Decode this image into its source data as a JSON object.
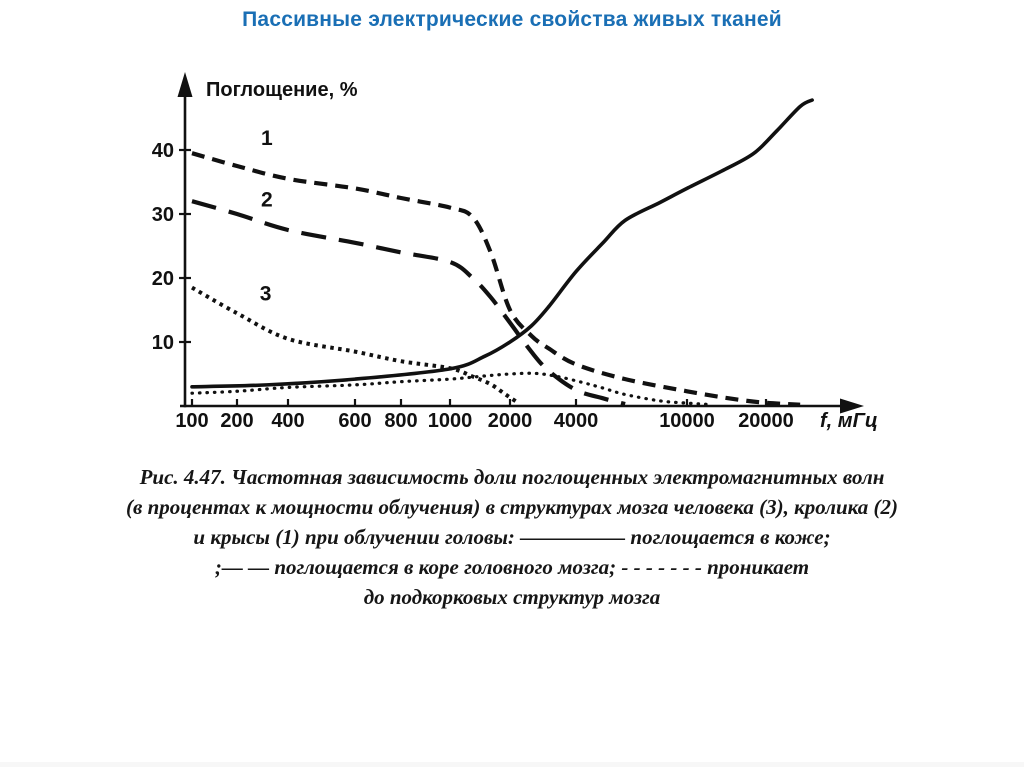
{
  "page": {
    "title": "Пассивные электрические свойства живых тканей"
  },
  "colors": {
    "title_accent": "#1a6fb5",
    "ink": "#111111"
  },
  "chart_data": {
    "type": "line",
    "title": "",
    "xlabel": "f, мГц",
    "ylabel": "Поглощение, %",
    "x_scale": "log-like",
    "x_ticks": [
      100,
      200,
      400,
      600,
      800,
      1000,
      2000,
      4000,
      10000,
      20000
    ],
    "y_ticks": [
      10,
      20,
      30,
      40
    ],
    "xlim": [
      100,
      30000
    ],
    "ylim": [
      0,
      48
    ],
    "grid": false,
    "legend_position": "in-caption",
    "series": [
      {
        "name": "1",
        "style": "dash-short",
        "points": [
          [
            100,
            39.5
          ],
          [
            200,
            37.5
          ],
          [
            400,
            35.5
          ],
          [
            600,
            34
          ],
          [
            800,
            32.5
          ],
          [
            1000,
            31
          ],
          [
            1300,
            29.5
          ],
          [
            1600,
            24
          ],
          [
            2000,
            15
          ],
          [
            2500,
            11
          ],
          [
            3000,
            9
          ],
          [
            4000,
            6.5
          ],
          [
            6000,
            4.2
          ],
          [
            10000,
            2.3
          ],
          [
            15000,
            1.1
          ],
          [
            20000,
            0.5
          ],
          [
            27000,
            0.2
          ]
        ]
      },
      {
        "name": "2",
        "style": "dash-long",
        "points": [
          [
            100,
            32
          ],
          [
            200,
            30
          ],
          [
            400,
            27.5
          ],
          [
            600,
            25.5
          ],
          [
            800,
            24
          ],
          [
            1000,
            22.5
          ],
          [
            1300,
            20
          ],
          [
            1600,
            17
          ],
          [
            2000,
            13
          ],
          [
            2500,
            8.5
          ],
          [
            3000,
            5.5
          ],
          [
            4000,
            2.5
          ],
          [
            5000,
            1.2
          ],
          [
            6000,
            0.3
          ]
        ]
      },
      {
        "name": "3",
        "style": "dotted-dense",
        "points": [
          [
            100,
            18.5
          ],
          [
            200,
            14.5
          ],
          [
            400,
            10.5
          ],
          [
            600,
            8.5
          ],
          [
            800,
            7
          ],
          [
            1000,
            5.9
          ],
          [
            1300,
            4.6
          ],
          [
            1600,
            3.4
          ],
          [
            1900,
            1.8
          ],
          [
            2200,
            0.4
          ]
        ]
      },
      {
        "name": "solid-curve",
        "style": "solid",
        "points": [
          [
            100,
            3
          ],
          [
            300,
            3.3
          ],
          [
            600,
            4.2
          ],
          [
            1000,
            5.8
          ],
          [
            1500,
            7.8
          ],
          [
            2000,
            10
          ],
          [
            2500,
            12.5
          ],
          [
            3000,
            15.5
          ],
          [
            4000,
            21
          ],
          [
            5000,
            25.5
          ],
          [
            6000,
            29
          ],
          [
            8000,
            31.8
          ],
          [
            10000,
            34
          ],
          [
            14000,
            37
          ],
          [
            18000,
            39.5
          ],
          [
            22000,
            43
          ],
          [
            27000,
            46.8
          ],
          [
            30000,
            47.8
          ]
        ]
      },
      {
        "name": "fine-dotted-curve",
        "style": "dotted-fine",
        "points": [
          [
            100,
            2
          ],
          [
            200,
            2.3
          ],
          [
            400,
            2.9
          ],
          [
            600,
            3.3
          ],
          [
            800,
            3.8
          ],
          [
            1000,
            4.2
          ],
          [
            1500,
            4.7
          ],
          [
            2000,
            5
          ],
          [
            2600,
            5.1
          ],
          [
            3300,
            4.6
          ],
          [
            4200,
            3.7
          ],
          [
            5000,
            2.8
          ],
          [
            6000,
            1.8
          ],
          [
            8000,
            0.8
          ],
          [
            10000,
            0.45
          ],
          [
            12000,
            0.25
          ]
        ]
      }
    ],
    "curve_labels": [
      {
        "text": "1",
        "f": 300,
        "v": 40.8
      },
      {
        "text": "2",
        "f": 300,
        "v": 31.2
      },
      {
        "text": "3",
        "f": 295,
        "v": 16.5
      }
    ]
  },
  "caption": {
    "lines": [
      "Рис. 4.47. Частотная зависимость доли поглощенных электромагнитных волн",
      "(в процентах к мощности облучения) в структурах мозга человека (3), кролика (2)",
      "и крысы (1) при облучении головы: ————— поглощается в коже;",
      ";— —  поглощается в коре головного мозга; - - - - - - -  проникает",
      "до подкорковых структур мозга"
    ]
  }
}
